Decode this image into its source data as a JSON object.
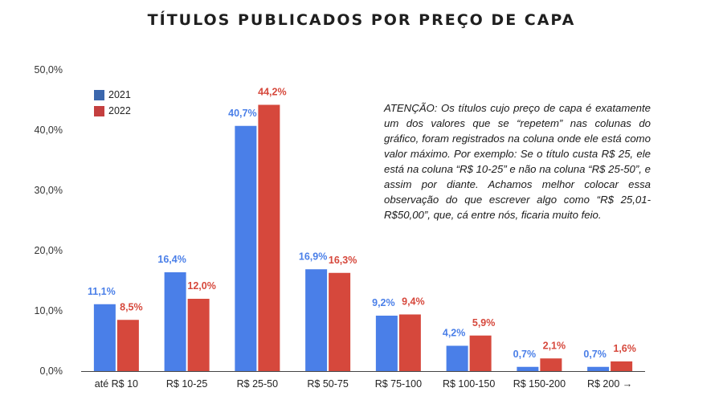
{
  "chart_data": {
    "type": "bar",
    "title": "TÍTULOS PUBLICADOS POR PREÇO DE CAPA",
    "categories": [
      "até R$ 10",
      "R$ 10-25",
      "R$ 25-50",
      "R$ 50-75",
      "R$ 75-100",
      "R$ 100-150",
      "R$ 150-200",
      "R$ 200 →"
    ],
    "series": [
      {
        "name": "2021",
        "color": "#4a7fe8",
        "legend_color": "#3b67ad",
        "values": [
          11.1,
          16.4,
          40.7,
          16.9,
          9.2,
          4.2,
          0.7,
          0.7
        ],
        "labels": [
          "11,1%",
          "16,4%",
          "40,7%",
          "16,9%",
          "9,2%",
          "4,2%",
          "0,7%",
          "0,7%"
        ]
      },
      {
        "name": "2022",
        "color": "#d6483c",
        "legend_color": "#c43f3f",
        "values": [
          8.5,
          12.0,
          44.2,
          16.3,
          9.4,
          5.9,
          2.1,
          1.6
        ],
        "labels": [
          "8,5%",
          "12,0%",
          "44,2%",
          "16,3%",
          "9,4%",
          "5,9%",
          "2,1%",
          "1,6%"
        ]
      }
    ],
    "ylim": [
      0,
      50
    ],
    "yticks": [
      "0,0%",
      "10,0%",
      "20,0%",
      "30,0%",
      "40,0%",
      "50,0%"
    ],
    "grid": false,
    "legend_position": "top-left",
    "annotation": "ATENÇÃO: Os títulos cujo preço de capa é exatamente um dos valores que se “repetem” nas colunas do gráfico, foram registrados na coluna onde ele está como valor máximo. Por exemplo: Se o título custa R$ 25, ele está na coluna “R$ 10-25” e não na coluna “R$ 25-50”, e assim por diante. Achamos melhor colocar essa observação do que escrever algo como “R$ 25,01-R$50,00”, que, cá entre nós, ficaria muito feio."
  }
}
